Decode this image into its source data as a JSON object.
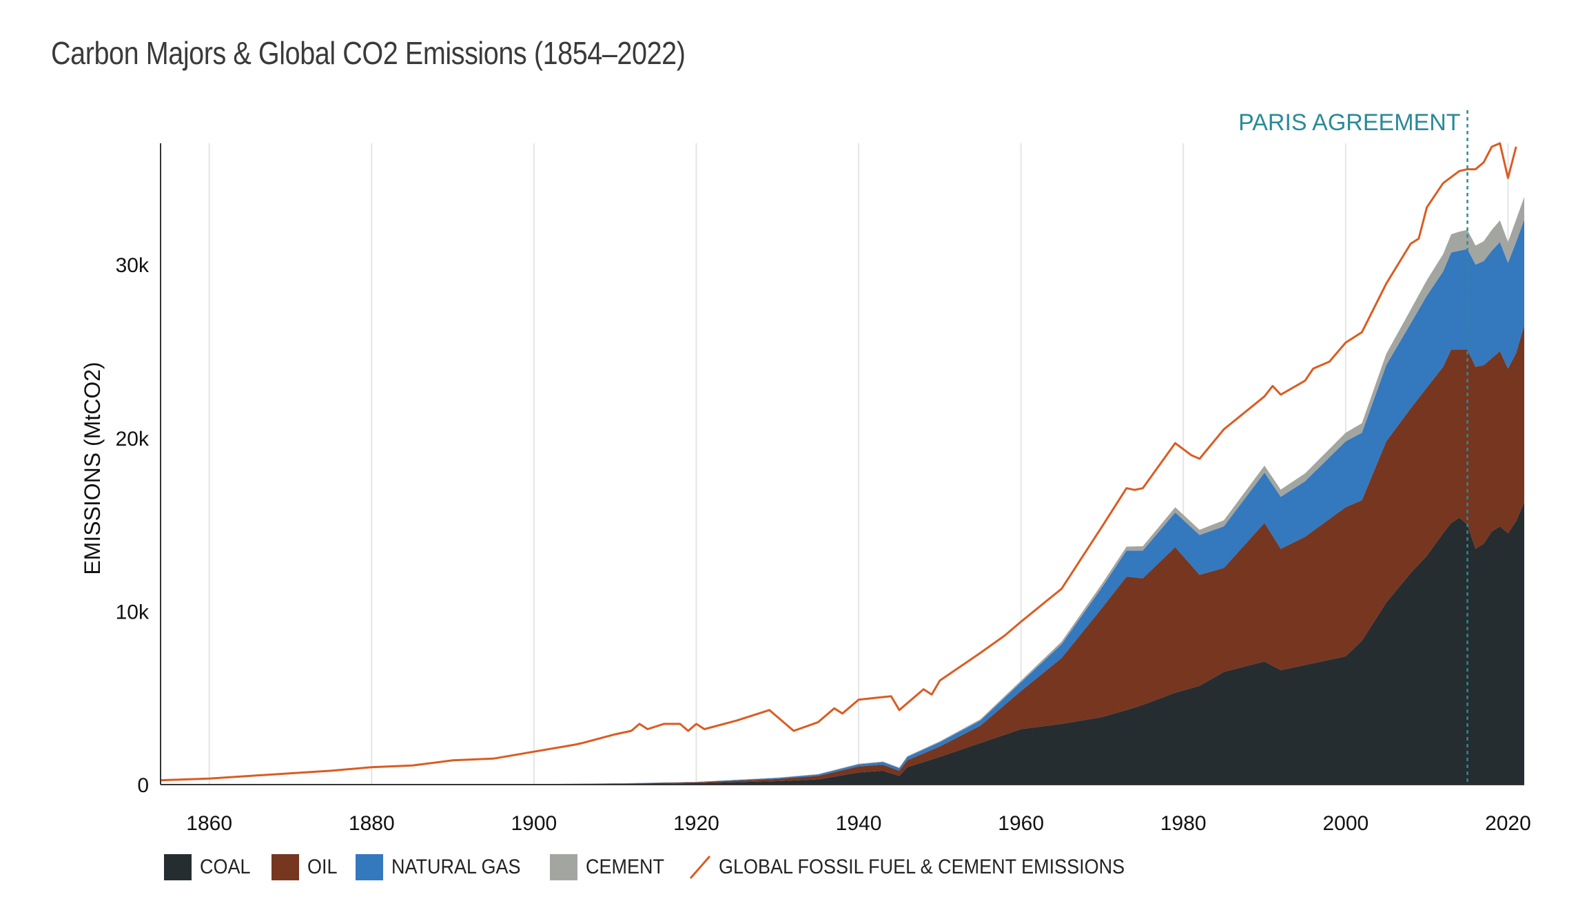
{
  "title": "Carbon Majors & Global CO2 Emissions (1854–2022)",
  "chart_data": {
    "type": "area",
    "title": "Carbon Majors & Global CO2 Emissions (1854–2022)",
    "xlabel": "",
    "ylabel": "EMISSIONS (MtCO2)",
    "xlim": [
      1854,
      2022
    ],
    "ylim": [
      0,
      37000
    ],
    "x_ticks": [
      "1860",
      "1880",
      "1900",
      "1920",
      "1940",
      "1960",
      "1980",
      "2000",
      "2020"
    ],
    "x_tick_values": [
      1860,
      1880,
      1900,
      1920,
      1940,
      1960,
      1980,
      2000,
      2020
    ],
    "y_ticks": [
      "0",
      "10k",
      "20k",
      "30k"
    ],
    "y_tick_values": [
      0,
      10000,
      20000,
      30000
    ],
    "grid": "vertical",
    "legend_position": "bottom",
    "stacked": true,
    "x": [
      1900,
      1910,
      1920,
      1930,
      1935,
      1940,
      1943,
      1945,
      1946,
      1950,
      1955,
      1960,
      1965,
      1970,
      1973,
      1975,
      1979,
      1982,
      1985,
      1990,
      1992,
      1995,
      2000,
      2002,
      2005,
      2008,
      2010,
      2012,
      2013,
      2014,
      2015,
      2016,
      2017,
      2018,
      2019,
      2020,
      2021,
      2022
    ],
    "series": [
      {
        "name": "COAL",
        "color": "#262d30",
        "values": [
          20,
          40,
          80,
          200,
          300,
          700,
          800,
          500,
          1000,
          1600,
          2400,
          3200,
          3500,
          3900,
          4300,
          4600,
          5300,
          5700,
          6500,
          7100,
          6600,
          6900,
          7400,
          8300,
          10500,
          12200,
          13200,
          14500,
          15100,
          15400,
          15000,
          13600,
          13900,
          14600,
          14900,
          14500,
          15200,
          16300
        ]
      },
      {
        "name": "OIL",
        "color": "#763620",
        "values": [
          10,
          20,
          50,
          120,
          200,
          350,
          350,
          300,
          400,
          600,
          1000,
          2200,
          3800,
          6300,
          7700,
          7300,
          8400,
          6400,
          6000,
          8000,
          7000,
          7400,
          8600,
          8100,
          9300,
          9500,
          9700,
          9600,
          10000,
          9700,
          10100,
          10500,
          10300,
          10000,
          10100,
          9500,
          9700,
          10200
        ]
      },
      {
        "name": "NATURAL GAS",
        "color": "#3478be",
        "values": [
          0,
          5,
          20,
          60,
          80,
          120,
          150,
          150,
          200,
          250,
          300,
          500,
          800,
          1200,
          1500,
          1600,
          2000,
          2300,
          2400,
          2900,
          3000,
          3200,
          3800,
          3900,
          4400,
          4900,
          5300,
          5500,
          5600,
          5700,
          5800,
          5900,
          6000,
          6200,
          6300,
          6100,
          6400,
          6100
        ]
      },
      {
        "name": "CEMENT",
        "color": "#a3a5a0",
        "values": [
          0,
          5,
          10,
          20,
          25,
          30,
          30,
          30,
          40,
          50,
          70,
          100,
          150,
          200,
          230,
          250,
          300,
          300,
          350,
          400,
          420,
          450,
          500,
          550,
          650,
          800,
          900,
          1000,
          1050,
          1100,
          1100,
          1100,
          1150,
          1200,
          1250,
          1200,
          1300,
          1300
        ]
      }
    ],
    "line_series": {
      "name": "GLOBAL FOSSIL FUEL & CEMENT EMISSIONS",
      "color": "#db5b20",
      "x": [
        1854,
        1860,
        1870,
        1875,
        1880,
        1885,
        1890,
        1895,
        1900,
        1905,
        1906,
        1910,
        1912,
        1913,
        1914,
        1916,
        1918,
        1919,
        1920,
        1921,
        1925,
        1929,
        1930,
        1932,
        1935,
        1937,
        1938,
        1940,
        1944,
        1945,
        1948,
        1949,
        1950,
        1955,
        1958,
        1960,
        1965,
        1970,
        1973,
        1974,
        1975,
        1979,
        1981,
        1982,
        1985,
        1990,
        1991,
        1992,
        1995,
        1996,
        1998,
        2000,
        2002,
        2005,
        2008,
        2009,
        2010,
        2012,
        2014,
        2015,
        2016,
        2017,
        2018,
        2019,
        2020,
        2021
      ],
      "values": [
        250,
        350,
        650,
        800,
        1000,
        1100,
        1400,
        1500,
        1900,
        2300,
        2400,
        2900,
        3100,
        3500,
        3200,
        3500,
        3500,
        3100,
        3500,
        3200,
        3700,
        4300,
        3900,
        3100,
        3600,
        4400,
        4100,
        4900,
        5100,
        4300,
        5500,
        5200,
        6000,
        7600,
        8600,
        9400,
        11300,
        14900,
        17100,
        17000,
        17100,
        19700,
        19000,
        18800,
        20500,
        22400,
        23000,
        22500,
        23300,
        24000,
        24400,
        25500,
        26100,
        28900,
        31200,
        31500,
        33300,
        34700,
        35400,
        35500,
        35500,
        35900,
        36800,
        37000,
        35000,
        36800
      ]
    },
    "annotations": [
      {
        "label": "PARIS AGREEMENT",
        "x": 2015
      }
    ]
  },
  "legend": [
    {
      "label": "COAL",
      "color": "#262d30",
      "kind": "swatch"
    },
    {
      "label": "OIL",
      "color": "#763620",
      "kind": "swatch"
    },
    {
      "label": "NATURAL GAS",
      "color": "#3478be",
      "kind": "swatch"
    },
    {
      "label": "CEMENT",
      "color": "#a3a5a0",
      "kind": "swatch"
    },
    {
      "label": "GLOBAL FOSSIL FUEL & CEMENT EMISSIONS",
      "color": "#db5b20",
      "kind": "line"
    }
  ]
}
